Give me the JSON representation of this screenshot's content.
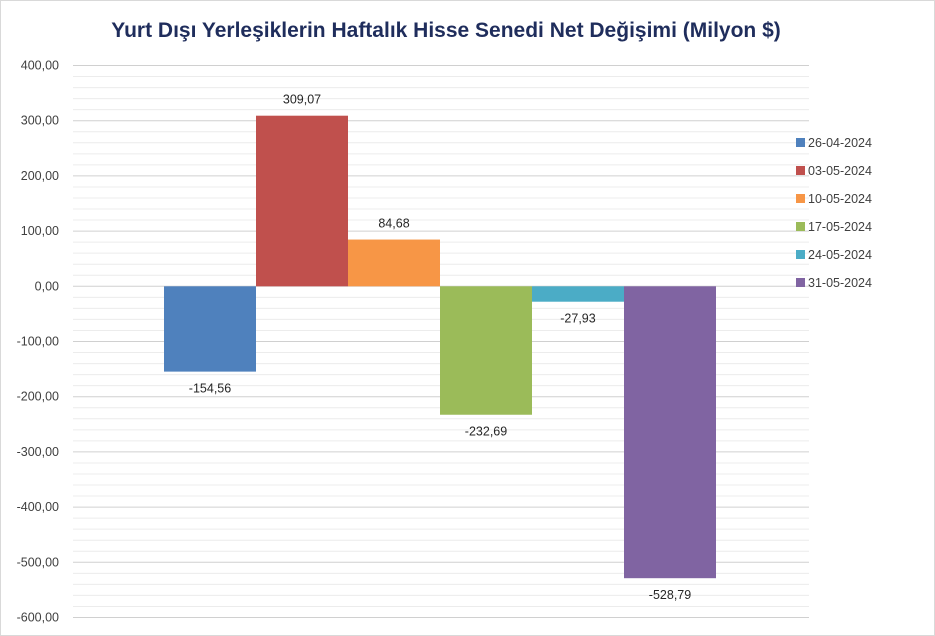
{
  "chart_data": {
    "type": "bar",
    "title": "Yurt Dışı Yerleşiklerin Haftalık Hisse Senedi Net Değişimi (Milyon $)",
    "xlabel": "",
    "ylabel": "",
    "ylim": [
      -600,
      400
    ],
    "yticks": [
      "400,00",
      "300,00",
      "200,00",
      "100,00",
      "0,00",
      "-100,00",
      "-200,00",
      "-300,00",
      "-400,00",
      "-500,00",
      "-600,00"
    ],
    "grid": true,
    "legend_position": "right",
    "series": [
      {
        "name": "26-04-2024",
        "value": -154.56,
        "label": "-154,56",
        "color": "#4f81bd"
      },
      {
        "name": "03-05-2024",
        "value": 309.07,
        "label": "309,07",
        "color": "#c0504d"
      },
      {
        "name": "10-05-2024",
        "value": 84.68,
        "label": "84,68",
        "color": "#f79646"
      },
      {
        "name": "17-05-2024",
        "value": -232.69,
        "label": "-232,69",
        "color": "#9bbb59"
      },
      {
        "name": "24-05-2024",
        "value": -27.93,
        "label": "-27,93",
        "color": "#4bacc6"
      },
      {
        "name": "31-05-2024",
        "value": -528.79,
        "label": "-528,79",
        "color": "#8064a2"
      }
    ]
  }
}
